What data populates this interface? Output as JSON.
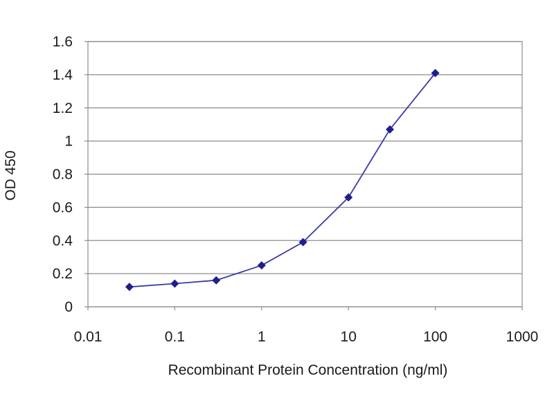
{
  "chart_data": {
    "type": "line",
    "title": "",
    "xlabel": "Recombinant Protein Concentration (ng/ml)",
    "ylabel": "OD 450",
    "x_scale": "log",
    "xlim": [
      0.01,
      1000
    ],
    "ylim": [
      0,
      1.6
    ],
    "x_ticks": [
      "0.01",
      "0.1",
      "1",
      "10",
      "100",
      "1000"
    ],
    "y_ticks": [
      "0",
      "0.2",
      "0.4",
      "0.6",
      "0.8",
      "1",
      "1.2",
      "1.4",
      "1.6"
    ],
    "grid": "horizontal",
    "legend": "none",
    "series": [
      {
        "x": [
          0.03,
          0.1,
          0.3,
          1,
          3,
          10,
          30,
          100
        ],
        "values": [
          0.12,
          0.14,
          0.16,
          0.25,
          0.39,
          0.66,
          1.07,
          1.41
        ],
        "color": "#1f1f8f",
        "line_color": "#3a3aa8"
      }
    ],
    "colors": {
      "grid": "#8c8c8c",
      "frame": "#8c8c8c",
      "text": "#1a1a1a"
    }
  }
}
